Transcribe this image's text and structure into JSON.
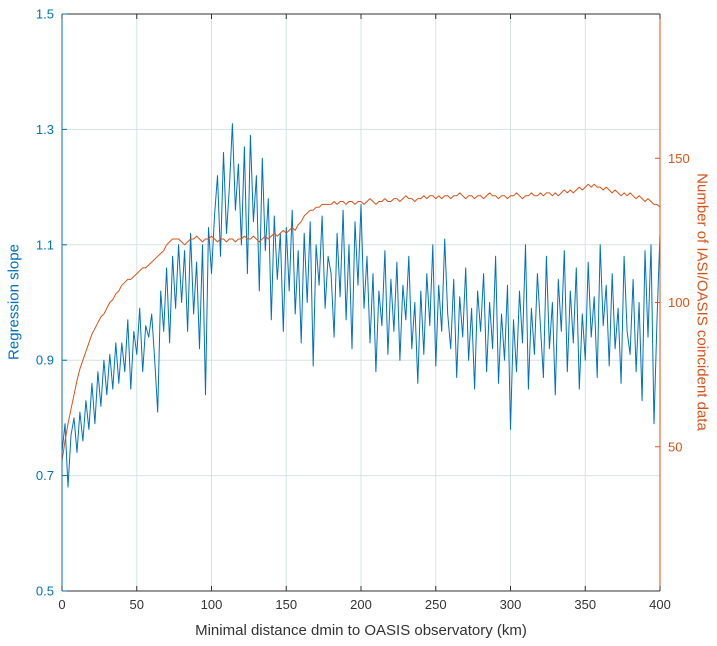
{
  "colors": {
    "left_axis": "#0072BD",
    "right_axis": "#D95319",
    "grid": "#d6e3e3",
    "axis_dark": "#333333",
    "background": "#ffffff"
  },
  "chart_data": {
    "type": "line",
    "title": "",
    "xlabel": "Minimal distance dmin to OASIS observatory (km)",
    "xlim": [
      0,
      400
    ],
    "x_ticks": [
      0,
      50,
      100,
      150,
      200,
      250,
      300,
      350,
      400
    ],
    "grid": true,
    "legend": "none",
    "left_axis": {
      "label": "Regression slope",
      "ylim": [
        0.5,
        1.5
      ],
      "ticks": [
        0.5,
        0.7,
        0.9,
        1.1,
        1.3,
        1.5
      ],
      "color": "#0072BD"
    },
    "right_axis": {
      "label": "Number of IASI/OASIS coincident data",
      "ylim": [
        0,
        200
      ],
      "ticks": [
        50,
        100,
        150
      ],
      "color": "#D95319"
    },
    "x": {
      "start": 0,
      "step": 2,
      "count": 201
    },
    "series": [
      {
        "name": "Regression slope",
        "axis": "left",
        "color": "#0072BD",
        "values": [
          0.74,
          0.79,
          0.68,
          0.77,
          0.8,
          0.74,
          0.81,
          0.76,
          0.83,
          0.78,
          0.86,
          0.79,
          0.88,
          0.82,
          0.9,
          0.84,
          0.91,
          0.85,
          0.93,
          0.86,
          0.93,
          0.88,
          0.97,
          0.85,
          0.95,
          0.91,
          0.99,
          0.88,
          0.96,
          0.94,
          0.98,
          0.9,
          0.81,
          1.02,
          0.95,
          1.06,
          0.93,
          1.08,
          0.99,
          1.1,
          1.0,
          1.09,
          0.95,
          1.12,
          0.98,
          1.07,
          0.92,
          1.1,
          0.84,
          1.13,
          1.05,
          1.15,
          1.22,
          1.08,
          1.26,
          1.12,
          1.2,
          1.31,
          1.16,
          1.24,
          1.1,
          1.27,
          1.05,
          1.29,
          1.14,
          1.22,
          1.02,
          1.25,
          1.09,
          1.18,
          0.97,
          1.15,
          1.04,
          1.12,
          0.95,
          1.13,
          1.02,
          1.16,
          0.98,
          1.09,
          0.93,
          1.12,
          1.0,
          1.14,
          0.89,
          1.1,
          1.03,
          1.15,
          0.99,
          1.08,
          1.05,
          0.94,
          1.12,
          1.01,
          1.16,
          0.97,
          1.1,
          0.92,
          1.14,
          1.03,
          1.17,
          0.99,
          1.08,
          0.93,
          1.05,
          0.88,
          1.02,
          0.96,
          1.09,
          0.91,
          1.04,
          0.95,
          1.07,
          0.9,
          1.03,
          0.97,
          1.08,
          0.92,
          1.0,
          0.86,
          1.02,
          0.91,
          1.05,
          0.96,
          1.1,
          0.89,
          1.03,
          0.95,
          1.11,
          0.98,
          0.92,
          1.04,
          0.87,
          1.01,
          0.94,
          1.06,
          0.9,
          0.99,
          0.85,
          1.02,
          0.95,
          1.05,
          0.88,
          1.0,
          0.92,
          1.08,
          0.86,
          0.98,
          0.9,
          1.03,
          0.78,
          0.97,
          0.88,
          1.02,
          0.93,
          1.1,
          0.85,
          0.99,
          0.91,
          1.05,
          0.96,
          0.87,
          1.08,
          0.92,
          1.0,
          0.84,
          1.04,
          0.95,
          1.09,
          0.88,
          1.02,
          0.93,
          1.06,
          0.85,
          0.98,
          0.9,
          1.07,
          0.94,
          1.01,
          0.87,
          1.1,
          0.96,
          1.03,
          0.89,
          1.05,
          0.92,
          0.99,
          0.86,
          1.08,
          0.95,
          0.91,
          1.04,
          0.88,
          1.0,
          0.83,
          1.09,
          0.94,
          1.1,
          0.79,
          0.97,
          1.12
        ]
      },
      {
        "name": "Number of IASI/OASIS coincident data",
        "axis": "right",
        "color": "#D95319",
        "values": [
          45,
          52,
          58,
          63,
          68,
          73,
          77,
          80,
          83,
          86,
          89,
          91,
          93,
          95,
          96,
          98,
          100,
          101,
          103,
          104,
          106,
          107,
          108,
          108,
          109,
          110,
          111,
          112,
          112,
          113,
          114,
          115,
          116,
          117,
          118,
          120,
          121,
          122,
          122,
          122,
          121,
          120,
          121,
          122,
          122,
          123,
          122,
          121,
          122,
          122,
          123,
          122,
          121,
          122,
          122,
          121,
          122,
          122,
          121,
          122,
          122,
          123,
          122,
          122,
          123,
          122,
          121,
          122,
          123,
          122,
          123,
          124,
          123,
          124,
          125,
          124,
          125,
          126,
          125,
          127,
          128,
          130,
          131,
          132,
          132,
          133,
          133,
          134,
          134,
          134,
          134,
          135,
          134,
          135,
          135,
          134,
          135,
          135,
          134,
          135,
          135,
          134,
          135,
          136,
          135,
          134,
          135,
          135,
          136,
          135,
          135,
          136,
          136,
          135,
          136,
          137,
          136,
          136,
          135,
          136,
          136,
          137,
          136,
          137,
          137,
          136,
          137,
          136,
          137,
          137,
          136,
          137,
          137,
          138,
          137,
          136,
          137,
          137,
          136,
          137,
          137,
          136,
          137,
          138,
          137,
          137,
          136,
          137,
          137,
          136,
          137,
          137,
          138,
          137,
          136,
          137,
          137,
          138,
          137,
          137,
          138,
          137,
          138,
          138,
          137,
          138,
          137,
          138,
          139,
          138,
          139,
          138,
          139,
          140,
          139,
          140,
          141,
          140,
          141,
          140,
          140,
          139,
          140,
          139,
          138,
          139,
          138,
          137,
          138,
          137,
          138,
          137,
          136,
          137,
          136,
          135,
          136,
          135,
          134,
          134,
          133
        ]
      }
    ]
  }
}
